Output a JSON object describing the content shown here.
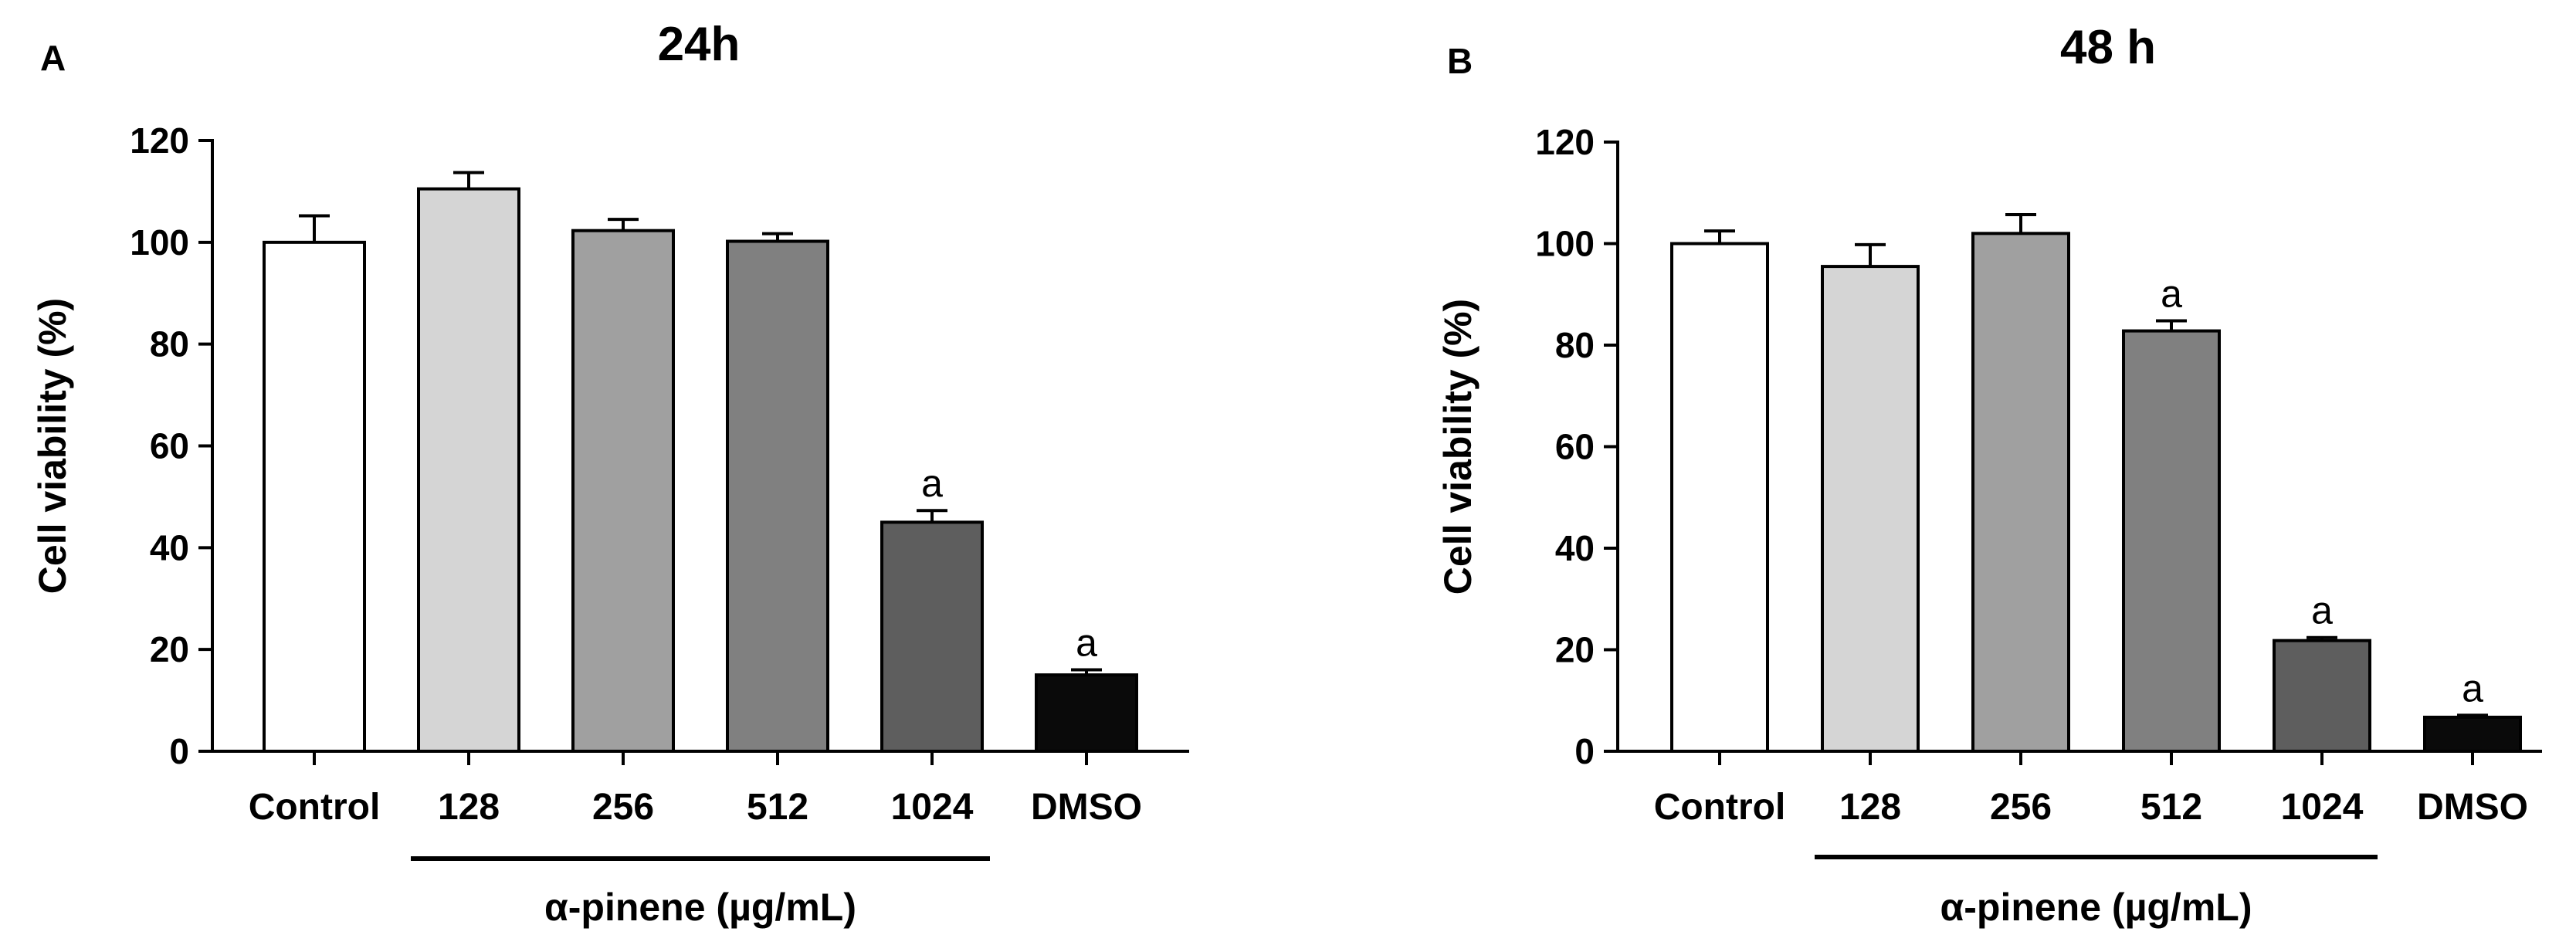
{
  "chart_data": [
    {
      "type": "bar",
      "panel": "A",
      "title": "24h",
      "ylabel": "Cell viability (%)",
      "xlabel": "",
      "group_label": "α-pinene (µg/mL)",
      "group_categories": [
        "128",
        "256",
        "512",
        "1024"
      ],
      "categories": [
        "Control",
        "128",
        "256",
        "512",
        "1024",
        "DMSO"
      ],
      "values": [
        100,
        110.5,
        102.3,
        100.2,
        45,
        15
      ],
      "errors": [
        5.2,
        3.2,
        2.2,
        1.5,
        2.3,
        1.0
      ],
      "annotations": [
        "",
        "",
        "",
        "",
        "a",
        "a"
      ],
      "colors": [
        "#ffffff",
        "#d5d5d5",
        "#a0a0a0",
        "#808080",
        "#5e5e5e",
        "#0a0a0a"
      ],
      "ylim": [
        0,
        120
      ],
      "yticks": [
        "0",
        "20",
        "40",
        "60",
        "80",
        "100",
        "120"
      ],
      "grid": false,
      "legend": "none"
    },
    {
      "type": "bar",
      "panel": "B",
      "title": "48 h",
      "ylabel": "Cell viability (%)",
      "xlabel": "",
      "group_label": "α-pinene (µg/mL)",
      "group_categories": [
        "128",
        "256",
        "512",
        "1024"
      ],
      "categories": [
        "Control",
        "128",
        "256",
        "512",
        "1024",
        "DMSO"
      ],
      "values": [
        100,
        95.5,
        102,
        82.8,
        21.8,
        6.7
      ],
      "errors": [
        2.5,
        4.3,
        3.7,
        2.0,
        0.6,
        0.4
      ],
      "annotations": [
        "",
        "",
        "",
        "a",
        "a",
        "a"
      ],
      "colors": [
        "#ffffff",
        "#d5d5d5",
        "#a0a0a0",
        "#808080",
        "#5e5e5e",
        "#0a0a0a"
      ],
      "ylim": [
        0,
        120
      ],
      "yticks": [
        "0",
        "20",
        "40",
        "60",
        "80",
        "100",
        "120"
      ],
      "grid": false,
      "legend": "none"
    }
  ]
}
